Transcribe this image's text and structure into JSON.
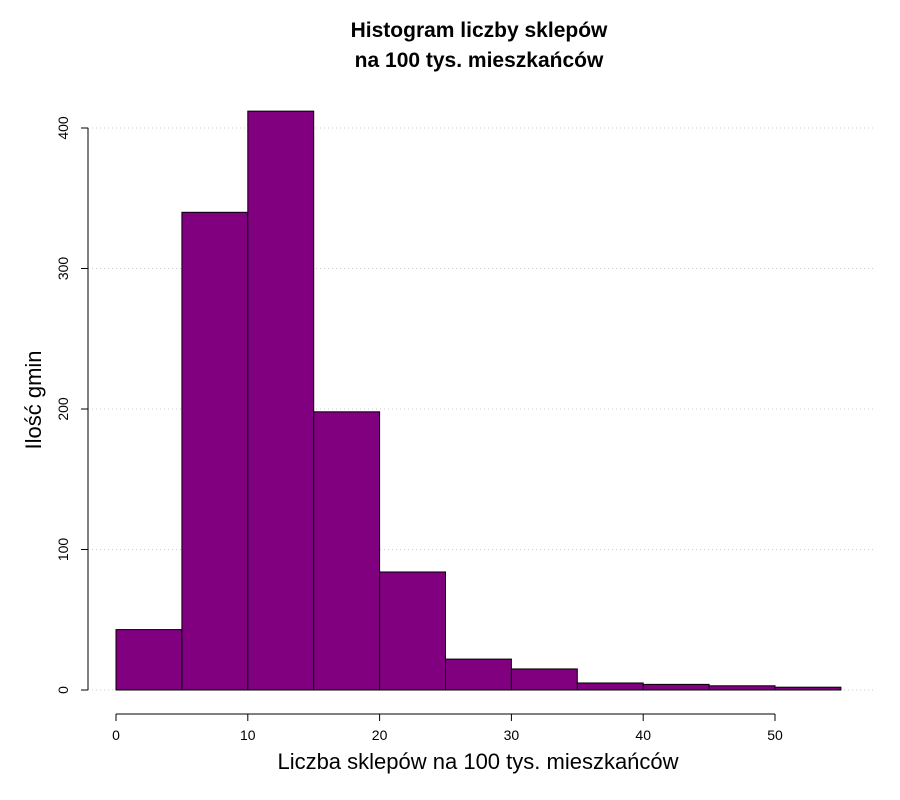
{
  "chart_data": {
    "type": "bar",
    "subtype": "histogram",
    "title": [
      "Histogram liczby sklepów",
      "na 100 tys. mieszkańców"
    ],
    "xlabel": "Liczba sklepów na 100 tys. mieszkańców",
    "ylabel": "Ilość gmin",
    "bins": [
      {
        "from": 0,
        "to": 5,
        "count": 43
      },
      {
        "from": 5,
        "to": 10,
        "count": 340
      },
      {
        "from": 10,
        "to": 15,
        "count": 412
      },
      {
        "from": 15,
        "to": 20,
        "count": 198
      },
      {
        "from": 20,
        "to": 25,
        "count": 84
      },
      {
        "from": 25,
        "to": 30,
        "count": 22
      },
      {
        "from": 30,
        "to": 35,
        "count": 15
      },
      {
        "from": 35,
        "to": 40,
        "count": 5
      },
      {
        "from": 40,
        "to": 45,
        "count": 4
      },
      {
        "from": 45,
        "to": 50,
        "count": 3
      },
      {
        "from": 50,
        "to": 55,
        "count": 2
      }
    ],
    "xlim": [
      0,
      55
    ],
    "ylim": [
      0,
      412
    ],
    "xticks": [
      0,
      10,
      20,
      30,
      40,
      50
    ],
    "yticks": [
      0,
      100,
      200,
      300,
      400
    ],
    "grid": {
      "y": true,
      "style": "dotted"
    },
    "colors": {
      "bar_fill": "#800080",
      "bar_stroke": "#000000",
      "grid": "#cccccc"
    }
  }
}
